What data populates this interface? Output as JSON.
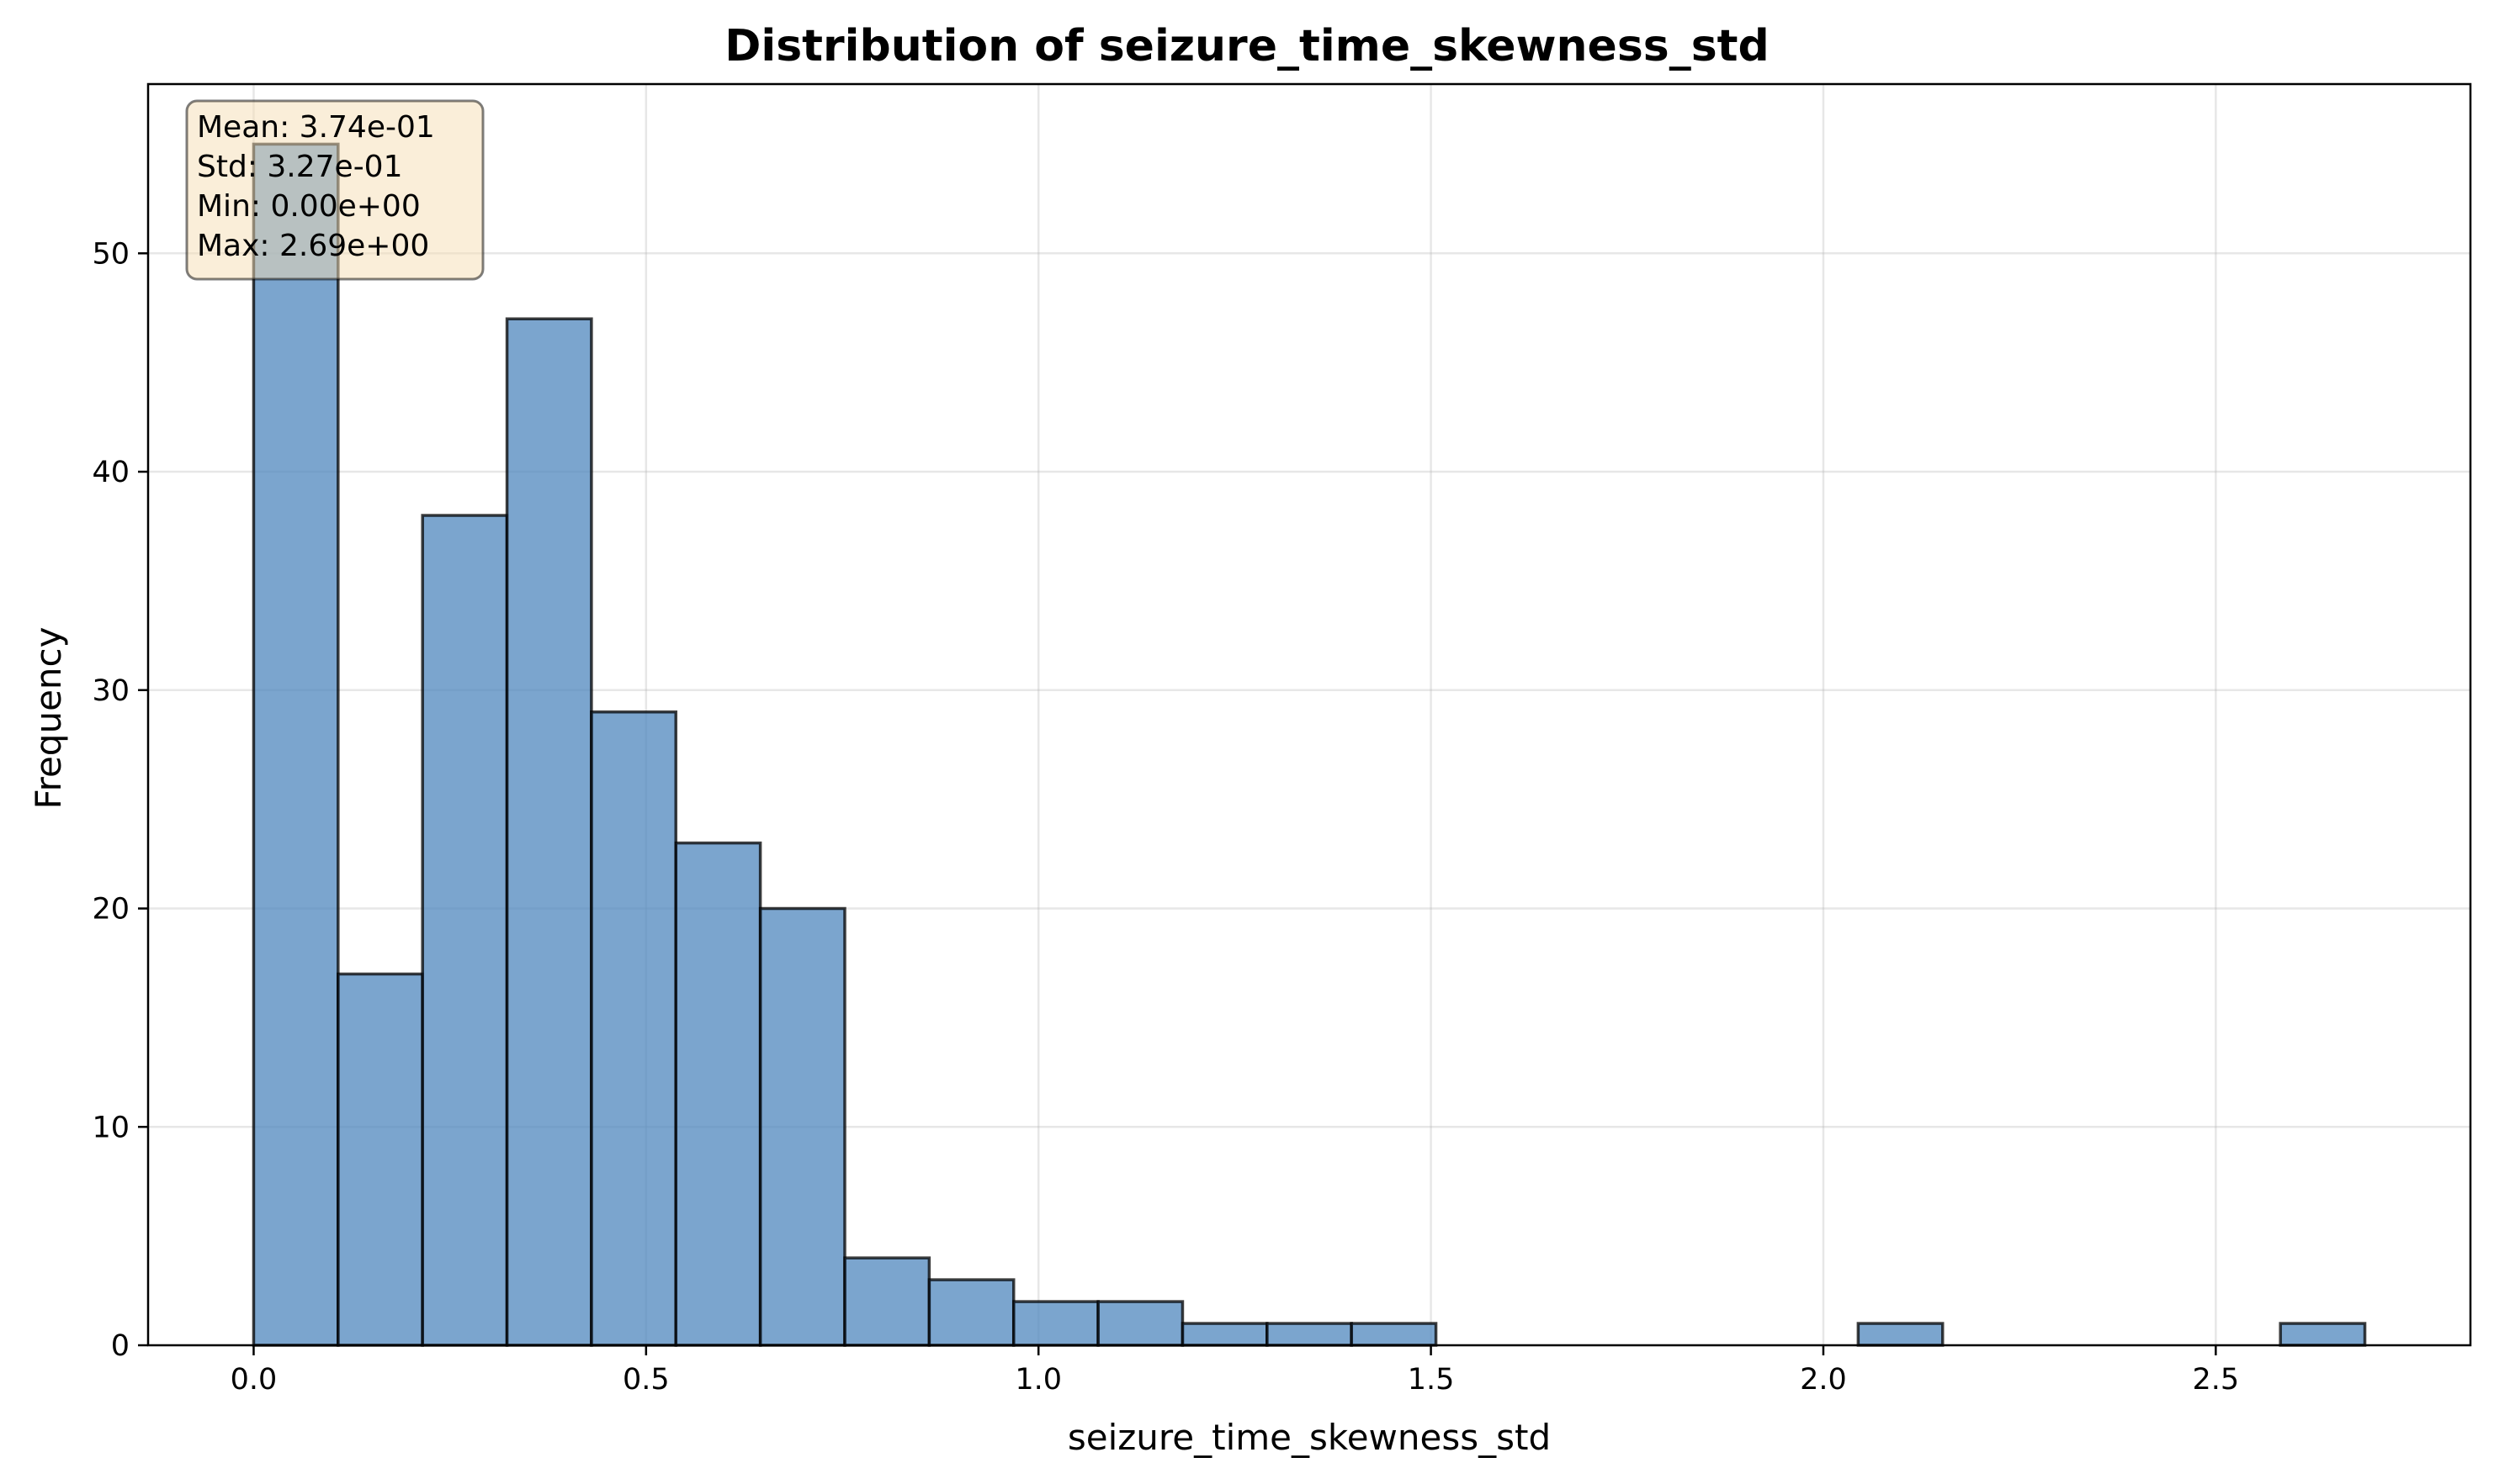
{
  "chart_data": {
    "type": "bar",
    "title": "Distribution of seizure_time_skewness_std",
    "xlabel": "seizure_time_skewness_std",
    "ylabel": "Frequency",
    "bin_start": 0.0,
    "bin_end": 2.69,
    "values": [
      55,
      17,
      38,
      47,
      29,
      23,
      20,
      4,
      3,
      2,
      2,
      1,
      1,
      1,
      0,
      0,
      0,
      0,
      0,
      1,
      0,
      0,
      0,
      0,
      1
    ],
    "xlim": [
      -0.1345,
      2.8245
    ],
    "ylim": [
      0,
      57.75
    ],
    "xticks": [
      0.0,
      0.5,
      1.0,
      1.5,
      2.0,
      2.5
    ],
    "xtick_labels": [
      "0.0",
      "0.5",
      "1.0",
      "1.5",
      "2.0",
      "2.5"
    ],
    "yticks": [
      0,
      10,
      20,
      30,
      40,
      50
    ],
    "ytick_labels": [
      "0",
      "10",
      "20",
      "30",
      "40",
      "50"
    ],
    "grid": true,
    "bar_color": "#4f87be",
    "edge_color": "#000000",
    "stats_box": {
      "lines": [
        "Mean: 3.74e-01",
        "Std: 3.27e-01",
        "Min: 0.00e+00",
        "Max: 2.69e+00"
      ],
      "placement": "top-left",
      "background": "#f5deb3"
    }
  }
}
